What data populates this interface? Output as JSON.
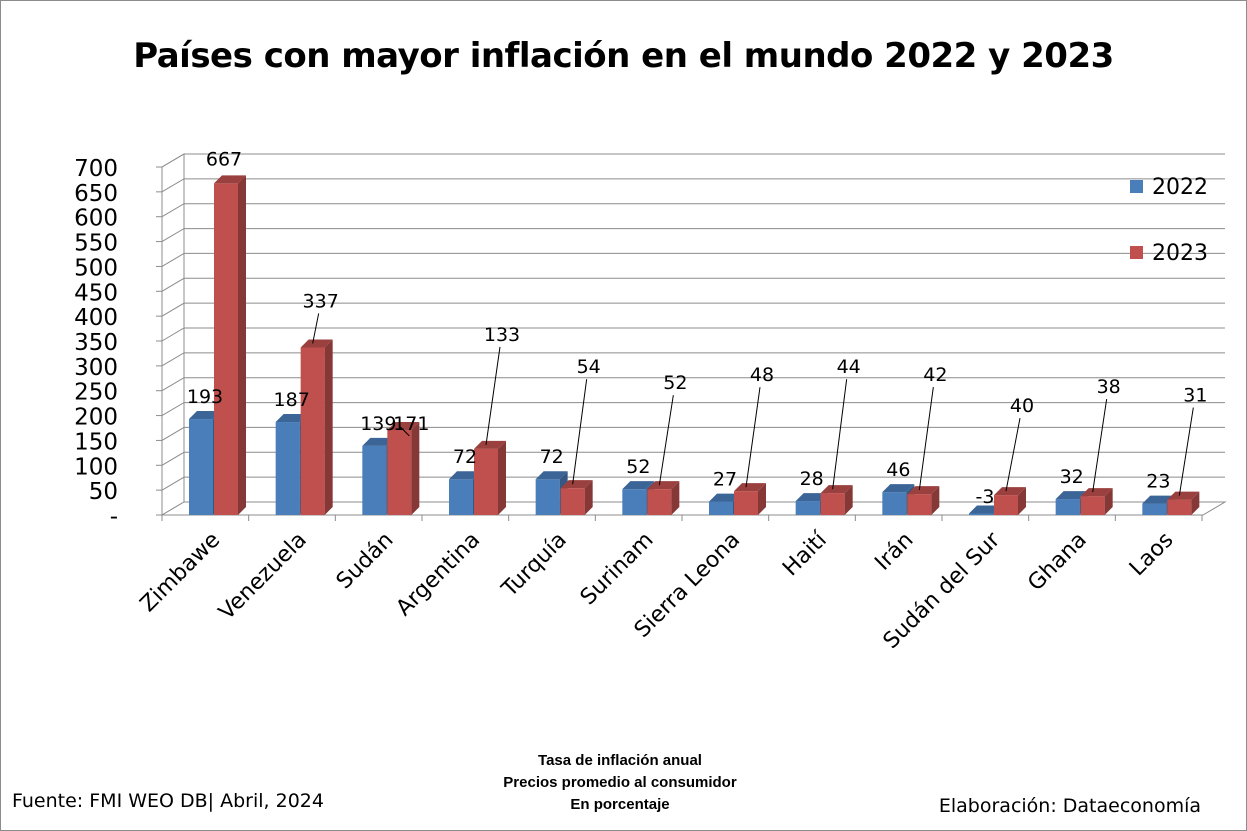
{
  "title": "Países con mayor inflación en el mundo 2022 y 2023",
  "notes": [
    "Tasa de inflación anual",
    "Precios promedio al consumidor",
    "En porcentaje"
  ],
  "source": "Fuente: FMI WEO DB| Abril, 2024",
  "credit": "Elaboración: Dataeconomía",
  "chart_data": {
    "type": "bar",
    "categories": [
      "Zimbawe",
      "Venezuela",
      "Sudán",
      "Argentina",
      "Turquía",
      "Surinam",
      "Sierra Leona",
      "Haití",
      "Irán",
      "Sudán del Sur",
      "Ghana",
      "Laos"
    ],
    "series": [
      {
        "name": "2022",
        "color": "#4a7ebb",
        "values": [
          193,
          187,
          139,
          72,
          72,
          52,
          27,
          28,
          46,
          -3,
          32,
          23
        ]
      },
      {
        "name": "2023",
        "color": "#c0504d",
        "values": [
          667,
          337,
          171,
          133,
          54,
          52,
          48,
          44,
          42,
          40,
          38,
          31
        ]
      }
    ],
    "yticks": [
      "-",
      "50",
      "100",
      "150",
      "200",
      "250",
      "300",
      "350",
      "400",
      "450",
      "500",
      "550",
      "600",
      "650",
      "700"
    ],
    "ylim": [
      0,
      700
    ],
    "grid": true,
    "legend": "right",
    "style": "3d"
  }
}
